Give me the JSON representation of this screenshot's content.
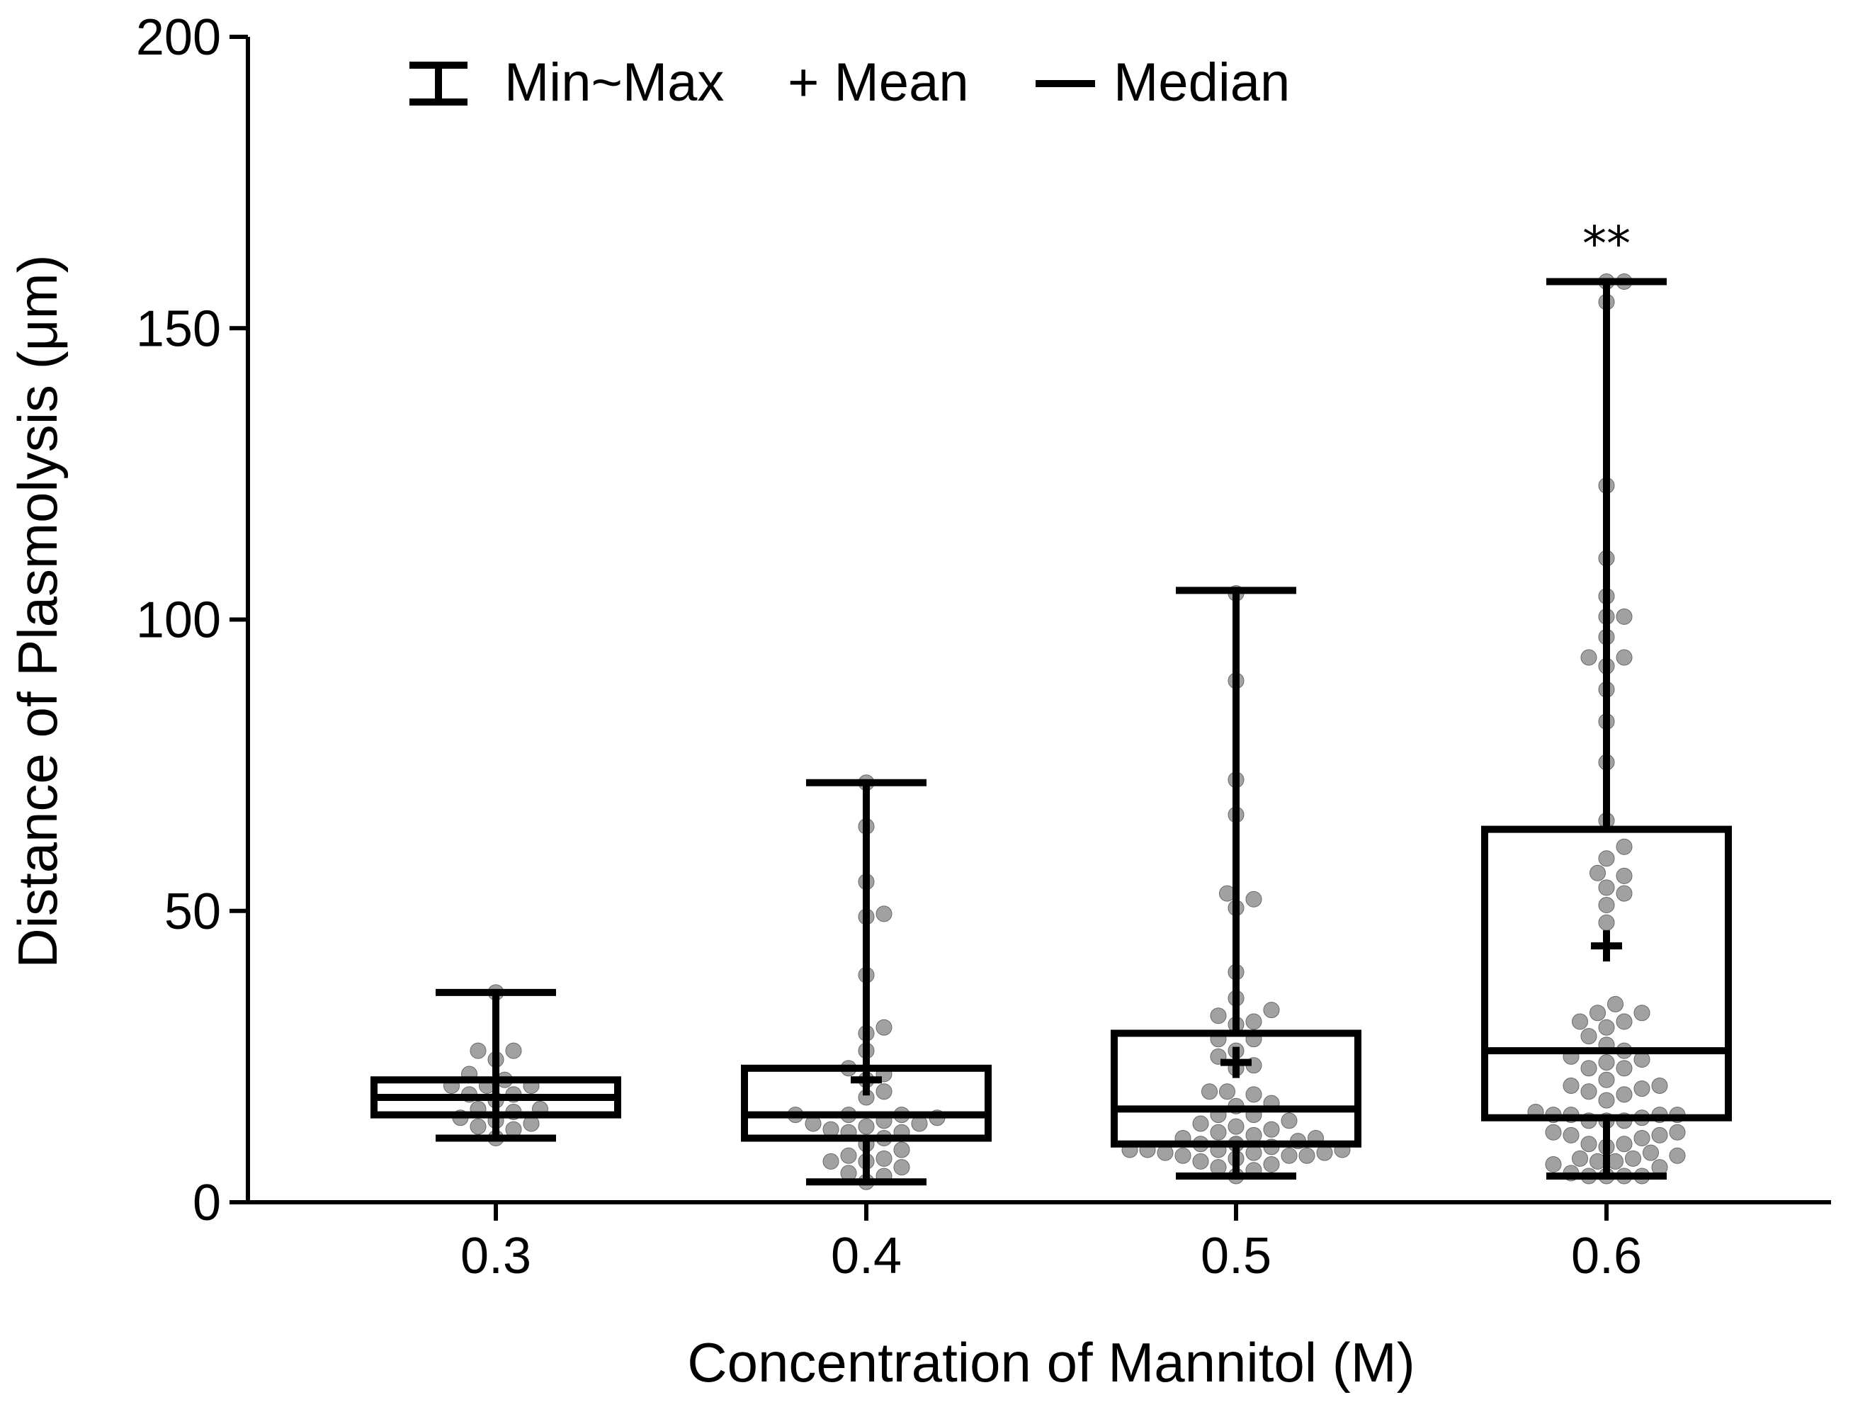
{
  "chart_data": {
    "type": "box",
    "xlabel": "Concentration of Mannitol (M)",
    "ylabel": "Distance of Plasmolysis (μm)",
    "ylim": [
      0,
      200
    ],
    "yticks": [
      0,
      50,
      100,
      150,
      200
    ],
    "legend": {
      "placement": "top-left",
      "items": [
        {
          "symbol": "minmax",
          "label": "Min~Max"
        },
        {
          "symbol": "mean",
          "label": "+ Mean"
        },
        {
          "symbol": "median",
          "label": "Median"
        }
      ]
    },
    "categories": [
      "0.3",
      "0.4",
      "0.5",
      "0.6"
    ],
    "boxes": [
      {
        "category": "0.3",
        "min": 11,
        "q1": 15,
        "median": 18,
        "q3": 21,
        "max": 36,
        "mean": 18,
        "annotation": ""
      },
      {
        "category": "0.4",
        "min": 3.5,
        "q1": 11,
        "median": 15,
        "q3": 23,
        "max": 72,
        "mean": 21,
        "annotation": ""
      },
      {
        "category": "0.5",
        "min": 4.5,
        "q1": 10,
        "median": 16,
        "q3": 29,
        "max": 105,
        "mean": 24,
        "annotation": ""
      },
      {
        "category": "0.6",
        "min": 4.5,
        "q1": 14.5,
        "median": 26,
        "q3": 64,
        "max": 158,
        "mean": 44,
        "annotation": "**"
      }
    ],
    "points": [
      [
        26,
        24.5,
        26,
        22,
        21,
        20,
        20,
        20,
        17.5,
        18.5,
        18.5,
        16,
        16,
        15.5,
        14.5,
        14,
        13.5,
        12.5,
        13,
        11,
        36
      ],
      [
        72,
        64.5,
        55,
        49.5,
        49,
        39,
        30,
        29,
        26,
        23,
        22,
        21,
        19,
        18,
        15,
        15,
        15,
        14.5,
        14,
        13.5,
        13.5,
        13,
        12.5,
        12,
        12,
        11,
        10,
        9,
        8,
        7.5,
        7,
        7,
        6,
        5,
        4.5,
        3.5
      ],
      [
        104.5,
        89.5,
        72.5,
        66.5,
        53,
        52,
        50.5,
        39.5,
        35,
        33,
        32,
        31,
        30.5,
        28,
        28,
        26,
        25,
        23.5,
        23,
        19,
        19,
        18.5,
        17,
        16.5,
        15,
        15,
        14,
        13.5,
        13,
        12.5,
        12,
        11.5,
        11,
        11,
        10.5,
        10,
        10,
        10,
        9.5,
        9,
        9,
        9,
        9,
        8.5,
        8.5,
        8.5,
        8,
        8,
        8,
        7.5,
        7,
        6.5,
        6,
        5.5,
        4.5
      ],
      [
        158,
        158,
        154.5,
        123,
        110.5,
        104,
        100.5,
        100.5,
        97,
        93.5,
        93.5,
        92,
        88,
        82.5,
        75.5,
        65.5,
        61,
        59,
        56.5,
        56,
        54,
        53,
        51,
        48,
        34,
        32.5,
        32.5,
        31,
        31,
        30,
        28.5,
        27,
        26,
        25,
        24.5,
        24,
        23,
        23,
        21,
        20,
        20,
        19.5,
        19,
        18.5,
        17.5,
        15.5,
        15,
        15,
        15,
        15,
        14.5,
        14,
        14,
        14,
        12,
        12,
        11.5,
        11.5,
        11,
        10,
        10,
        9.5,
        8.5,
        8,
        7.5,
        7.5,
        7,
        7,
        6.5,
        6,
        5,
        4.5,
        4.5,
        4.5,
        4.5
      ]
    ]
  }
}
